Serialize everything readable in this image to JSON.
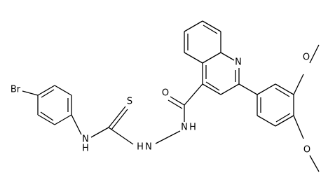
{
  "atoms": [
    {
      "label": "Br"
    },
    {
      "label": "N"
    },
    {
      "label": "H"
    },
    {
      "label": "S"
    },
    {
      "label": "H"
    },
    {
      "label": "N"
    },
    {
      "label": "N"
    },
    {
      "label": "H"
    },
    {
      "label": "O"
    },
    {
      "label": "N"
    },
    {
      "label": "O"
    },
    {
      "label": "O"
    }
  ]
}
